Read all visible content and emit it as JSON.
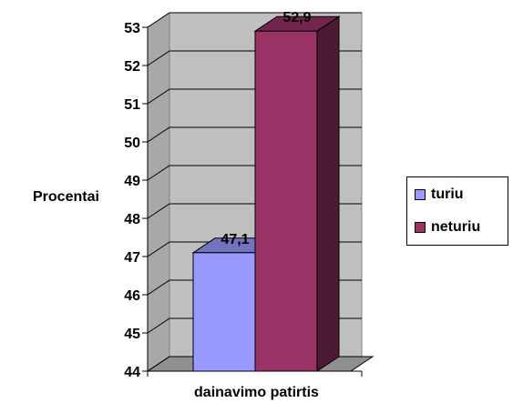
{
  "chart_data": {
    "type": "bar",
    "title": "",
    "xlabel": "dainavimo patirtis",
    "ylabel": "Procentai",
    "ylim": [
      44,
      53
    ],
    "yticks": [
      44,
      45,
      46,
      47,
      48,
      49,
      50,
      51,
      52,
      53
    ],
    "grid": true,
    "legend_position": "right",
    "series": [
      {
        "name": "turiu",
        "value": 47.1,
        "label": "47,1",
        "color": "#9999ff"
      },
      {
        "name": "neturiu",
        "value": 52.9,
        "label": "52,9",
        "color": "#993366"
      }
    ]
  }
}
